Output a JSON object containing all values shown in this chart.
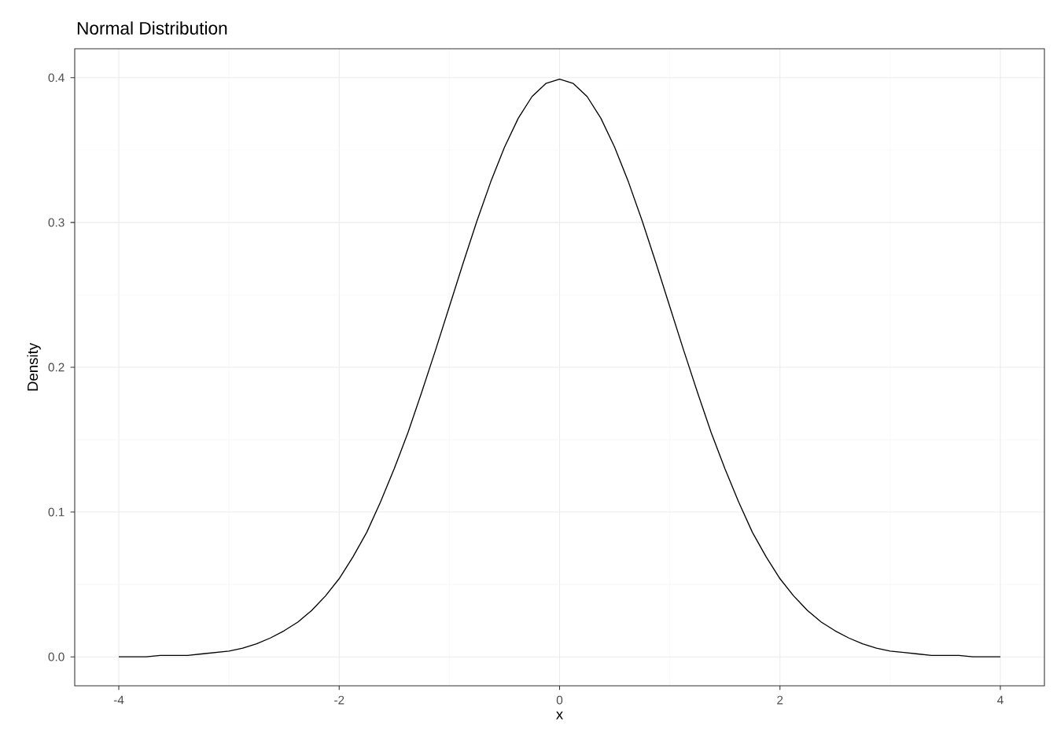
{
  "chart_data": {
    "type": "line",
    "title": "Normal Distribution",
    "xlabel": "x",
    "ylabel": "Density",
    "x": [
      -4,
      -3.875,
      -3.75,
      -3.625,
      -3.5,
      -3.375,
      -3.25,
      -3.125,
      -3,
      -2.875,
      -2.75,
      -2.625,
      -2.5,
      -2.375,
      -2.25,
      -2.125,
      -2,
      -1.875,
      -1.75,
      -1.625,
      -1.5,
      -1.375,
      -1.25,
      -1.125,
      -1,
      -0.875,
      -0.75,
      -0.625,
      -0.5,
      -0.375,
      -0.25,
      -0.125,
      0,
      0.125,
      0.25,
      0.375,
      0.5,
      0.625,
      0.75,
      0.875,
      1,
      1.125,
      1.25,
      1.375,
      1.5,
      1.625,
      1.75,
      1.875,
      2,
      2.125,
      2.25,
      2.375,
      2.5,
      2.625,
      2.75,
      2.875,
      3,
      3.125,
      3.25,
      3.375,
      3.5,
      3.625,
      3.75,
      3.875,
      4
    ],
    "series": [
      {
        "color": "#000000",
        "values": [
          0.0,
          0.0,
          0.0,
          0.001,
          0.001,
          0.001,
          0.002,
          0.003,
          0.004,
          0.006,
          0.009,
          0.013,
          0.018,
          0.024,
          0.032,
          0.042,
          0.054,
          0.069,
          0.086,
          0.107,
          0.13,
          0.155,
          0.183,
          0.212,
          0.242,
          0.272,
          0.301,
          0.328,
          0.352,
          0.372,
          0.387,
          0.396,
          0.399,
          0.396,
          0.387,
          0.372,
          0.352,
          0.328,
          0.301,
          0.272,
          0.242,
          0.212,
          0.183,
          0.155,
          0.13,
          0.107,
          0.086,
          0.069,
          0.054,
          0.042,
          0.032,
          0.024,
          0.018,
          0.013,
          0.009,
          0.006,
          0.004,
          0.003,
          0.002,
          0.001,
          0.001,
          0.001,
          0.0,
          0.0,
          0.0
        ]
      }
    ],
    "xlim": [
      -4.4,
      4.4
    ],
    "ylim": [
      -0.02,
      0.42
    ],
    "xticks": [
      -4,
      -2,
      0,
      2,
      4
    ],
    "yticks": [
      {
        "value": 0,
        "label": "0.0"
      },
      0.1,
      0.2,
      0.3,
      0.4
    ],
    "grid": true
  }
}
